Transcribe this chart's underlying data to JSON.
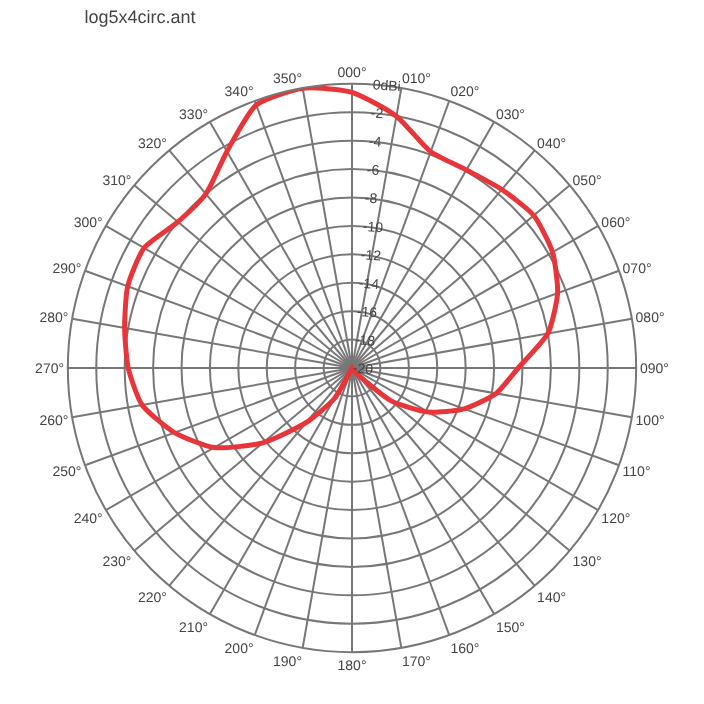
{
  "chart_data": {
    "type": "radar",
    "title": "log5x4circ.ant",
    "categories": [
      "000°",
      "010°",
      "020°",
      "030°",
      "040°",
      "050°",
      "060°",
      "070°",
      "080°",
      "090°",
      "100°",
      "110°",
      "120°",
      "130°",
      "140°",
      "150°",
      "160°",
      "170°",
      "180°",
      "190°",
      "200°",
      "210°",
      "220°",
      "230°",
      "240°",
      "250°",
      "260°",
      "270°",
      "280°",
      "290°",
      "300°",
      "310°",
      "320°",
      "330°",
      "340°",
      "350°"
    ],
    "series": [
      {
        "color": "#e8353a",
        "values": [
          -0.6,
          -2.0,
          -3.8,
          -3.9,
          -3.6,
          -3.3,
          -3.7,
          -4.6,
          -6.0,
          -8.3,
          -9.7,
          -11.6,
          -13.8,
          -16.4,
          -19.5,
          -20,
          -20,
          -20,
          -20,
          -20,
          -20,
          -17.5,
          -15,
          -11.8,
          -8.8,
          -6.7,
          -5.0,
          -4.25,
          -3.75,
          -3.2,
          -3.1,
          -4.0,
          -4.0,
          -2.4,
          -0.3,
          0
        ]
      }
    ],
    "ylim": [
      -20,
      0
    ],
    "yticks": [
      {
        "value": 0,
        "label": "0dBi"
      },
      -2,
      -4,
      -6,
      -8,
      -10,
      -12,
      -14,
      -16,
      -18,
      -20
    ],
    "grid": true,
    "line_style": "solid",
    "marker": "none"
  }
}
